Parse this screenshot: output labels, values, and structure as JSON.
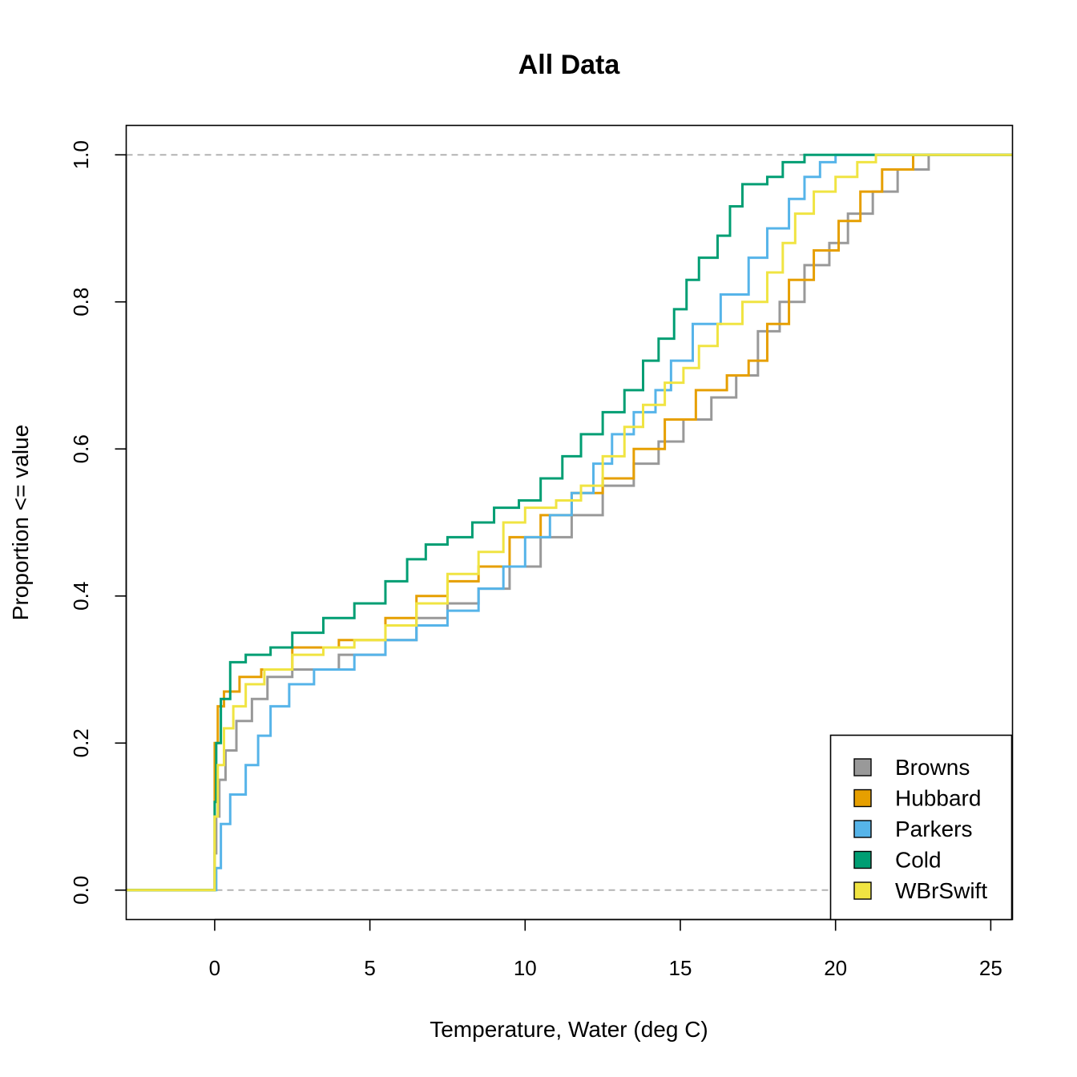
{
  "chart_data": {
    "type": "line",
    "title": "All Data",
    "xlabel": "Temperature, Water (deg C)",
    "ylabel": "Proportion <= value",
    "xlim": [
      -2.85,
      25.7
    ],
    "ylim": [
      -0.04,
      1.04
    ],
    "xticks": [
      0,
      5,
      10,
      15,
      20,
      25
    ],
    "xtick_labels": [
      "0",
      "5",
      "10",
      "15",
      "20",
      "25"
    ],
    "yticks": [
      0.0,
      0.2,
      0.4,
      0.6,
      0.8,
      1.0
    ],
    "ytick_labels": [
      "0.0",
      "0.2",
      "0.4",
      "0.6",
      "0.8",
      "1.0"
    ],
    "reference_lines": [
      0,
      1
    ],
    "legend_position": "bottom-right",
    "grid": false,
    "series": [
      {
        "name": "Browns",
        "color": "#999999",
        "points": [
          [
            -3,
            0
          ],
          [
            0,
            0
          ],
          [
            0,
            0.05
          ],
          [
            0.05,
            0.1
          ],
          [
            0.15,
            0.15
          ],
          [
            0.35,
            0.19
          ],
          [
            0.7,
            0.23
          ],
          [
            1.2,
            0.26
          ],
          [
            1.7,
            0.29
          ],
          [
            2.5,
            0.3
          ],
          [
            4.0,
            0.32
          ],
          [
            5.5,
            0.34
          ],
          [
            6.5,
            0.37
          ],
          [
            7.5,
            0.39
          ],
          [
            8.5,
            0.41
          ],
          [
            9.5,
            0.44
          ],
          [
            10.5,
            0.48
          ],
          [
            11.5,
            0.51
          ],
          [
            12.5,
            0.55
          ],
          [
            13.5,
            0.58
          ],
          [
            14.3,
            0.61
          ],
          [
            15.1,
            0.64
          ],
          [
            16.0,
            0.67
          ],
          [
            16.8,
            0.7
          ],
          [
            17.5,
            0.76
          ],
          [
            18.2,
            0.8
          ],
          [
            19.0,
            0.85
          ],
          [
            19.8,
            0.88
          ],
          [
            20.4,
            0.92
          ],
          [
            21.2,
            0.95
          ],
          [
            22.0,
            0.98
          ],
          [
            23.0,
            1.0
          ],
          [
            26,
            1.0
          ]
        ]
      },
      {
        "name": "Hubbard",
        "color": "#E69F00",
        "points": [
          [
            -3,
            0
          ],
          [
            0,
            0
          ],
          [
            0,
            0.2
          ],
          [
            0.1,
            0.25
          ],
          [
            0.3,
            0.27
          ],
          [
            0.8,
            0.29
          ],
          [
            1.5,
            0.3
          ],
          [
            2.5,
            0.33
          ],
          [
            4.0,
            0.34
          ],
          [
            5.5,
            0.37
          ],
          [
            6.5,
            0.4
          ],
          [
            7.5,
            0.42
          ],
          [
            8.5,
            0.44
          ],
          [
            9.5,
            0.48
          ],
          [
            10.5,
            0.51
          ],
          [
            11.5,
            0.54
          ],
          [
            12.5,
            0.56
          ],
          [
            13.5,
            0.6
          ],
          [
            14.5,
            0.64
          ],
          [
            15.5,
            0.68
          ],
          [
            16.5,
            0.7
          ],
          [
            17.2,
            0.72
          ],
          [
            17.8,
            0.77
          ],
          [
            18.5,
            0.83
          ],
          [
            19.3,
            0.87
          ],
          [
            20.1,
            0.91
          ],
          [
            20.8,
            0.95
          ],
          [
            21.5,
            0.98
          ],
          [
            22.5,
            1.0
          ],
          [
            26,
            1.0
          ]
        ]
      },
      {
        "name": "Parkers",
        "color": "#56B4E9",
        "points": [
          [
            -3,
            0
          ],
          [
            0,
            0
          ],
          [
            0.05,
            0.03
          ],
          [
            0.2,
            0.09
          ],
          [
            0.5,
            0.13
          ],
          [
            1.0,
            0.17
          ],
          [
            1.4,
            0.21
          ],
          [
            1.8,
            0.25
          ],
          [
            2.4,
            0.28
          ],
          [
            3.2,
            0.3
          ],
          [
            4.5,
            0.32
          ],
          [
            5.5,
            0.34
          ],
          [
            6.5,
            0.36
          ],
          [
            7.5,
            0.38
          ],
          [
            8.5,
            0.41
          ],
          [
            9.3,
            0.44
          ],
          [
            10.0,
            0.48
          ],
          [
            10.8,
            0.51
          ],
          [
            11.5,
            0.54
          ],
          [
            12.2,
            0.58
          ],
          [
            12.8,
            0.62
          ],
          [
            13.5,
            0.65
          ],
          [
            14.2,
            0.68
          ],
          [
            14.7,
            0.72
          ],
          [
            15.4,
            0.77
          ],
          [
            16.3,
            0.81
          ],
          [
            17.2,
            0.86
          ],
          [
            17.8,
            0.9
          ],
          [
            18.5,
            0.94
          ],
          [
            19.0,
            0.97
          ],
          [
            19.5,
            0.99
          ],
          [
            20.0,
            1.0
          ],
          [
            26,
            1.0
          ]
        ]
      },
      {
        "name": "Cold",
        "color": "#009E73",
        "points": [
          [
            -3,
            0
          ],
          [
            0,
            0
          ],
          [
            0,
            0.12
          ],
          [
            0.05,
            0.2
          ],
          [
            0.2,
            0.26
          ],
          [
            0.5,
            0.31
          ],
          [
            1.0,
            0.32
          ],
          [
            1.8,
            0.33
          ],
          [
            2.5,
            0.35
          ],
          [
            3.5,
            0.37
          ],
          [
            4.5,
            0.39
          ],
          [
            5.5,
            0.42
          ],
          [
            6.2,
            0.45
          ],
          [
            6.8,
            0.47
          ],
          [
            7.5,
            0.48
          ],
          [
            8.3,
            0.5
          ],
          [
            9.0,
            0.52
          ],
          [
            9.8,
            0.53
          ],
          [
            10.5,
            0.56
          ],
          [
            11.2,
            0.59
          ],
          [
            11.8,
            0.62
          ],
          [
            12.5,
            0.65
          ],
          [
            13.2,
            0.68
          ],
          [
            13.8,
            0.72
          ],
          [
            14.3,
            0.75
          ],
          [
            14.8,
            0.79
          ],
          [
            15.2,
            0.83
          ],
          [
            15.6,
            0.86
          ],
          [
            16.2,
            0.89
          ],
          [
            16.6,
            0.93
          ],
          [
            17.0,
            0.96
          ],
          [
            17.8,
            0.97
          ],
          [
            18.3,
            0.99
          ],
          [
            19.0,
            1.0
          ],
          [
            26,
            1.0
          ]
        ]
      },
      {
        "name": "WBrSwift",
        "color": "#F0E442",
        "points": [
          [
            -3,
            0
          ],
          [
            0,
            0
          ],
          [
            0,
            0.1
          ],
          [
            0.1,
            0.17
          ],
          [
            0.3,
            0.22
          ],
          [
            0.6,
            0.25
          ],
          [
            1.0,
            0.28
          ],
          [
            1.6,
            0.3
          ],
          [
            2.5,
            0.32
          ],
          [
            3.5,
            0.33
          ],
          [
            4.5,
            0.34
          ],
          [
            5.5,
            0.36
          ],
          [
            6.5,
            0.39
          ],
          [
            7.5,
            0.43
          ],
          [
            8.5,
            0.46
          ],
          [
            9.3,
            0.5
          ],
          [
            10.0,
            0.52
          ],
          [
            11.0,
            0.53
          ],
          [
            11.8,
            0.55
          ],
          [
            12.5,
            0.59
          ],
          [
            13.2,
            0.63
          ],
          [
            13.8,
            0.66
          ],
          [
            14.5,
            0.69
          ],
          [
            15.1,
            0.71
          ],
          [
            15.6,
            0.74
          ],
          [
            16.2,
            0.77
          ],
          [
            17.0,
            0.8
          ],
          [
            17.8,
            0.84
          ],
          [
            18.3,
            0.88
          ],
          [
            18.7,
            0.92
          ],
          [
            19.3,
            0.95
          ],
          [
            20.0,
            0.97
          ],
          [
            20.7,
            0.99
          ],
          [
            21.3,
            1.0
          ],
          [
            26,
            1.0
          ]
        ]
      }
    ]
  }
}
